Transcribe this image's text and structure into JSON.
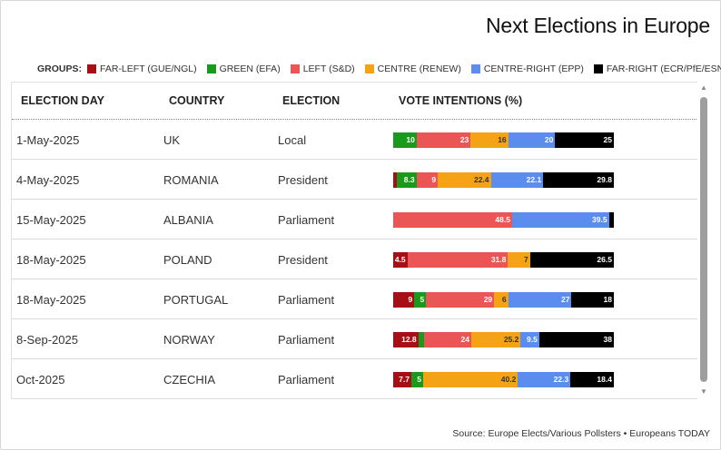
{
  "title": "Next Elections in Europe",
  "legend": {
    "label": "GROUPS:",
    "items": [
      {
        "name": "FAR-LEFT (GUE/NGL)",
        "color": "#a50f15"
      },
      {
        "name": "GREEN (EFA)",
        "color": "#1a9a1a"
      },
      {
        "name": "LEFT (S&D)",
        "color": "#ea5556"
      },
      {
        "name": "CENTRE (RENEW)",
        "color": "#f5a316"
      },
      {
        "name": "CENTRE-RIGHT (EPP)",
        "color": "#5b8def"
      },
      {
        "name": "FAR-RIGHT (ECR/PfE/ESN/ID)",
        "color": "#000000"
      }
    ]
  },
  "headers": {
    "election_day": "ELECTION DAY",
    "country": "COUNTRY",
    "election": "ELECTION",
    "vote_intentions": "VOTE INTENTIONS (%)"
  },
  "source": "Source: Europe Elects/Various Pollsters • Europeans TODAY",
  "chart_data": {
    "type": "table",
    "series": [
      "FAR-LEFT (GUE/NGL)",
      "GREEN (EFA)",
      "LEFT (S&D)",
      "CENTRE (RENEW)",
      "CENTRE-RIGHT (EPP)",
      "FAR-RIGHT (ECR/PfE/ESN/ID)"
    ],
    "rows": [
      {
        "day": "1-May-2025",
        "country": "UK",
        "election": "Local",
        "values": [
          0,
          10,
          23,
          16,
          20,
          25
        ]
      },
      {
        "day": "4-May-2025",
        "country": "ROMANIA",
        "election": "President",
        "values": [
          1.5,
          8.3,
          9,
          22.4,
          22.1,
          29.8
        ]
      },
      {
        "day": "15-May-2025",
        "country": "ALBANIA",
        "election": "Parliament",
        "values": [
          0,
          0,
          48.5,
          0,
          39.5,
          2
        ]
      },
      {
        "day": "18-May-2025",
        "country": "POLAND",
        "election": "President",
        "values": [
          4.5,
          0,
          31.8,
          7,
          0,
          26.5
        ]
      },
      {
        "day": "18-May-2025",
        "country": "PORTUGAL",
        "election": "Parliament",
        "values": [
          9,
          5,
          29,
          6,
          27,
          18
        ]
      },
      {
        "day": "8-Sep-2025",
        "country": "NORWAY",
        "election": "Parliament",
        "values": [
          12.8,
          3,
          24,
          25.2,
          9.5,
          38
        ]
      },
      {
        "day": "Oct-2025",
        "country": "CZECHIA",
        "election": "Parliament",
        "values": [
          7.7,
          5,
          0,
          40.2,
          22.3,
          18.4
        ]
      }
    ],
    "labels": [
      [
        "",
        "10",
        "23",
        "16",
        "20",
        "25"
      ],
      [
        "",
        "8.3",
        "9",
        "22.4",
        "22.1",
        "29.8"
      ],
      [
        "",
        "",
        "48.5",
        "",
        "39.5",
        ""
      ],
      [
        "4.5",
        "",
        "31.8",
        "7",
        "",
        "26.5"
      ],
      [
        "9",
        "5",
        "29",
        "6",
        "27",
        "18"
      ],
      [
        "12.8",
        "",
        "24",
        "25.2",
        "9.5",
        "38"
      ],
      [
        "7.7",
        "5",
        "",
        "40.2",
        "22.3",
        "18.4"
      ]
    ],
    "label_colors": [
      "#ffffff",
      "#ffffff",
      "#ffffff",
      "#333333",
      "#ffffff",
      "#ffffff"
    ]
  }
}
